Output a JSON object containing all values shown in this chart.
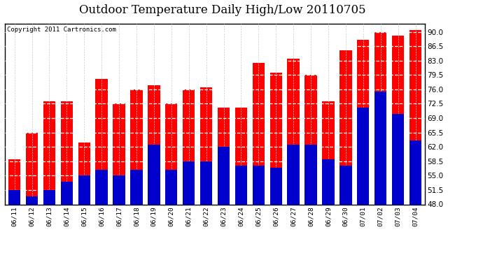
{
  "title": "Outdoor Temperature Daily High/Low 20110705",
  "copyright_text": "Copyright 2011 Cartronics.com",
  "categories": [
    "06/11",
    "06/12",
    "06/13",
    "06/14",
    "06/15",
    "06/16",
    "06/17",
    "06/18",
    "06/19",
    "06/20",
    "06/21",
    "06/22",
    "06/23",
    "06/24",
    "06/25",
    "06/26",
    "06/27",
    "06/28",
    "06/29",
    "06/30",
    "07/01",
    "07/02",
    "07/03",
    "07/04"
  ],
  "highs": [
    59.0,
    65.5,
    73.0,
    73.0,
    63.0,
    78.5,
    72.5,
    76.0,
    77.0,
    72.5,
    76.0,
    76.5,
    71.5,
    71.5,
    82.5,
    80.0,
    83.5,
    79.5,
    73.0,
    85.5,
    88.0,
    90.0,
    89.0,
    90.5
  ],
  "lows": [
    51.5,
    50.0,
    51.5,
    53.5,
    55.0,
    56.5,
    55.0,
    56.5,
    62.5,
    56.5,
    58.5,
    58.5,
    62.0,
    57.5,
    57.5,
    57.0,
    62.5,
    62.5,
    59.0,
    57.5,
    71.5,
    75.5,
    70.0,
    63.5
  ],
  "high_color": "#ff0000",
  "low_color": "#0000cc",
  "ylim_min": 48.0,
  "ylim_max": 92.0,
  "yticks": [
    48.0,
    51.5,
    55.0,
    58.5,
    62.0,
    65.5,
    69.0,
    72.5,
    76.0,
    79.5,
    83.0,
    86.5,
    90.0
  ],
  "bg_color": "#ffffff",
  "grid_color": "#cccccc",
  "title_fontsize": 12,
  "copyright_fontsize": 6.5,
  "bar_width": 0.7
}
